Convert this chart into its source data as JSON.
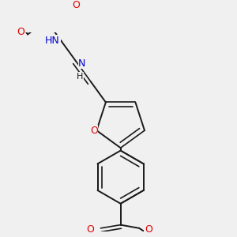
{
  "background_color": "#f0f0f0",
  "bond_color": "#1a1a1a",
  "nitrogen_color": "#0000cd",
  "oxygen_color": "#e00000",
  "carbon_color": "#1a1a1a",
  "figsize": [
    3.0,
    3.0
  ],
  "dpi": 100,
  "xlim": [
    0,
    3.0
  ],
  "ylim": [
    0,
    3.0
  ]
}
